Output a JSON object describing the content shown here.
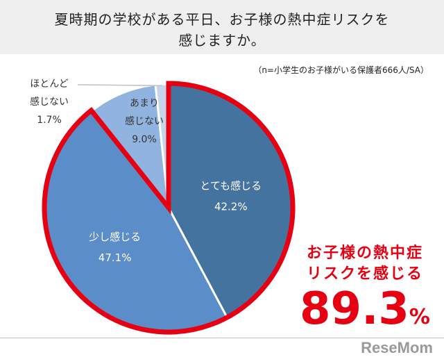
{
  "title": {
    "line1": "夏時期の学校がある平日、お子様の熱中症リスクを",
    "line2": "感じますか。"
  },
  "sample_note": "（n=小学生のお子様がいる保護者666人/SA）",
  "callout": {
    "line1": "お子様の熱中症",
    "line2": "リスクを感じる",
    "total": "89.3",
    "unit": "%"
  },
  "watermark": "ReseMom",
  "colors": {
    "very": "#44739f",
    "little": "#5b8dc9",
    "notmuch": "#91b3df",
    "none": "#c6d6ea",
    "highlight": "#e60012"
  },
  "chart_data": {
    "type": "pie",
    "title": "夏時期の学校がある平日、お子様の熱中症リスクを感じますか。",
    "start": "12 o'clock, clockwise",
    "slices": [
      {
        "label": "とても感じる",
        "value": 42.2,
        "value_text": "42.2%",
        "color": "#44739f",
        "highlighted": true
      },
      {
        "label": "少し感じる",
        "value": 47.1,
        "value_text": "47.1%",
        "color": "#5b8dc9",
        "highlighted": true
      },
      {
        "label_lines": [
          "あまり",
          "感じない"
        ],
        "label": "あまり感じない",
        "value": 9.0,
        "value_text": "9.0%",
        "color": "#91b3df",
        "highlighted": false
      },
      {
        "label_lines": [
          "ほとんど",
          "感じない"
        ],
        "label": "ほとんど感じない",
        "value": 1.7,
        "value_text": "1.7%",
        "color": "#c6d6ea",
        "highlighted": false
      }
    ]
  }
}
